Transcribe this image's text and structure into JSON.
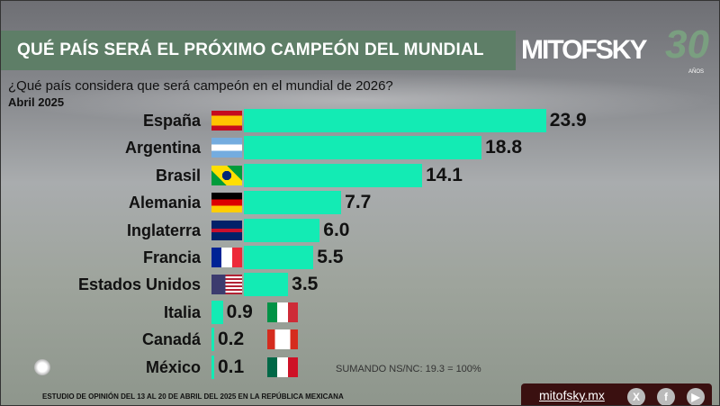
{
  "header": {
    "title": "QUÉ PAÍS SERÁ EL PRÓXIMO CAMPEÓN DEL MUNDIAL",
    "logo": "MITOFSKY",
    "logo_suffix": "30",
    "logo_years": "AÑOS"
  },
  "question": "¿Qué país considera que será campeón en el mundial de 2026?",
  "period": "Abril 2025",
  "note": "SUMANDO NS/NC: 19.3 = 100%",
  "footer": {
    "study": "ESTUDIO DE OPINIÓN DEL 13 AL 20 DE ABRIL DEL 2025 EN LA REPÚBLICA MEXICANA",
    "site": "mitofsky.mx",
    "social_icons": [
      "x-icon",
      "facebook-icon",
      "youtube-icon"
    ]
  },
  "colors": {
    "bar": "#13ebb4",
    "title_band": "#5e7e67"
  },
  "chart_data": {
    "type": "bar",
    "orientation": "horizontal",
    "categories": [
      "España",
      "Argentina",
      "Brasil",
      "Alemania",
      "Inglaterra",
      "Francia",
      "Estados Unidos",
      "Italia",
      "Canadá",
      "México"
    ],
    "values": [
      23.9,
      18.8,
      14.1,
      7.7,
      6.0,
      5.5,
      3.5,
      0.9,
      0.2,
      0.1
    ],
    "value_labels": [
      "23.9",
      "18.8",
      "14.1",
      "7.7",
      "6.0",
      "5.5",
      "3.5",
      "0.9",
      "0.2",
      "0.1"
    ],
    "flags": [
      "spain",
      "argentina",
      "brazil",
      "germany",
      "uk",
      "france",
      "usa",
      "italy",
      "canada",
      "mexico"
    ],
    "title": "",
    "xlabel": "",
    "ylabel": "",
    "grid": false,
    "legend": "none"
  }
}
